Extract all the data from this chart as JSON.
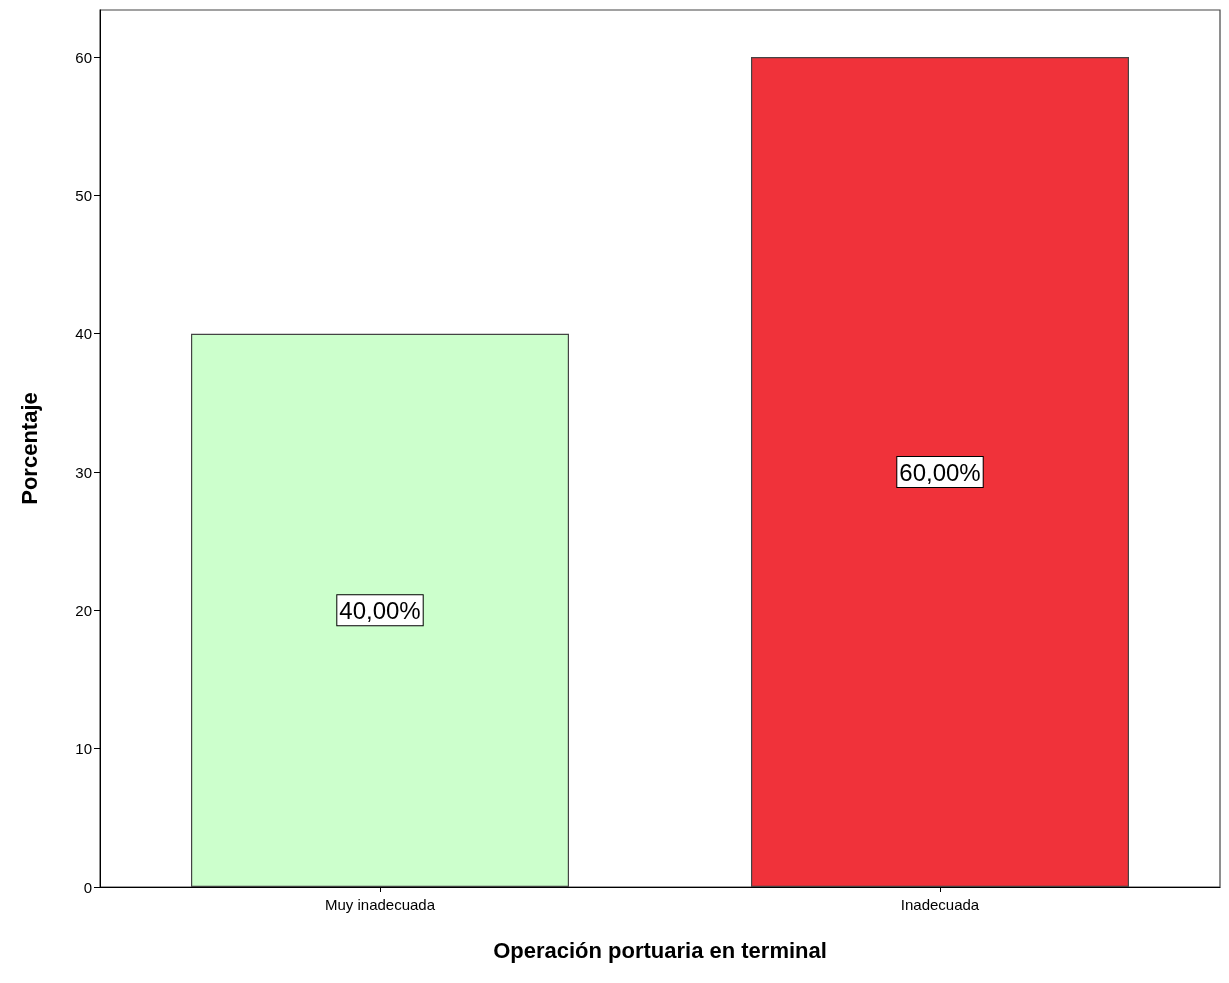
{
  "chart_data": {
    "type": "bar",
    "xlabel": "Operación portuaria en terminal",
    "ylabel": "Porcentaje",
    "categories": [
      "Muy inadecuada",
      "Inadecuada"
    ],
    "values": [
      40,
      60
    ],
    "colors": [
      "#ccffcc",
      "#f0323a"
    ],
    "value_labels": [
      "40,00%",
      "60,00%"
    ],
    "ylim": [
      0,
      63.4
    ],
    "yticks": [
      0,
      10,
      20,
      30,
      40,
      50,
      60
    ],
    "grid": false
  }
}
